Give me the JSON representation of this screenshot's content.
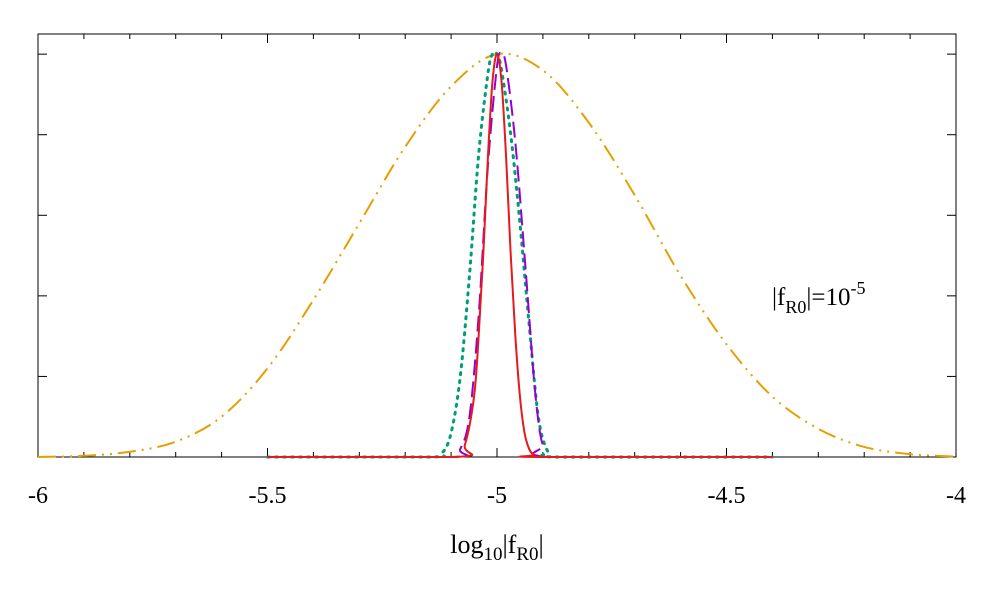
{
  "chart_data": {
    "type": "line",
    "title": "",
    "xlabel": {
      "base": "log",
      "sub": "10",
      "mid": "|f",
      "sub2": "R0",
      "end": "|"
    },
    "ylabel": "",
    "xlim": [
      -6,
      -4
    ],
    "ylim": [
      0,
      1.05
    ],
    "x_ticks": [
      -6,
      -5.5,
      -5,
      -4.5,
      -4
    ],
    "x_tick_labels": [
      "-6",
      "-5.5",
      "-5",
      "-4.5",
      "-4"
    ],
    "y_ticks": [
      0.2,
      0.4,
      0.6,
      0.8,
      1.0
    ],
    "y_tick_labels_shown": false,
    "grid": false,
    "annotation": {
      "pre": "|f",
      "sub": "R0",
      "mid": "|=10",
      "sup": "-5"
    },
    "series": [
      {
        "color": "#e69f00",
        "dash": "dash-dot-dot",
        "x_range": [
          -6,
          -4
        ],
        "x": [
          -6.0,
          -5.9,
          -5.8,
          -5.7,
          -5.6,
          -5.5,
          -5.4,
          -5.3,
          -5.2,
          -5.1,
          -5.0,
          -4.9,
          -4.8,
          -4.7,
          -4.6,
          -4.5,
          -4.4,
          -4.3,
          -4.2,
          -4.1,
          -4.0
        ],
        "y": [
          0.0,
          0.003,
          0.013,
          0.038,
          0.1,
          0.22,
          0.39,
          0.58,
          0.77,
          0.92,
          1.0,
          0.96,
          0.83,
          0.65,
          0.45,
          0.28,
          0.15,
          0.07,
          0.025,
          0.007,
          0.001
        ]
      },
      {
        "color": "#009e73",
        "dash": "dotted",
        "x_range": [
          -5.5,
          -4.4
        ],
        "x": [
          -5.5,
          -5.15,
          -5.12,
          -5.1,
          -5.08,
          -5.06,
          -5.04,
          -5.02,
          -5.01,
          -5.0,
          -4.99,
          -4.97,
          -4.95,
          -4.93,
          -4.91,
          -4.89,
          -4.87,
          -4.4
        ],
        "y": [
          0.0,
          0.0,
          0.01,
          0.06,
          0.2,
          0.45,
          0.75,
          0.95,
          1.0,
          1.0,
          0.96,
          0.8,
          0.58,
          0.33,
          0.1,
          0.015,
          0.0,
          0.0
        ]
      },
      {
        "color": "#9400d3",
        "dash": "long-dash",
        "x_range": [
          -5.5,
          -4.4
        ],
        "x": [
          -5.5,
          -5.1,
          -5.08,
          -5.06,
          -5.04,
          -5.02,
          -5.0,
          -4.99,
          -4.98,
          -4.96,
          -4.94,
          -4.93,
          -4.92,
          -4.91,
          -4.9,
          -4.88,
          -4.4
        ],
        "y": [
          0.0,
          0.0,
          0.02,
          0.1,
          0.35,
          0.72,
          0.97,
          1.0,
          0.97,
          0.78,
          0.5,
          0.35,
          0.2,
          0.09,
          0.03,
          0.0,
          0.0
        ]
      },
      {
        "color": "#e41a1c",
        "dash": "solid",
        "x_range": [
          -5.5,
          -4.4
        ],
        "x": [
          -5.5,
          -5.09,
          -5.07,
          -5.05,
          -5.04,
          -5.03,
          -5.02,
          -5.01,
          -5.0,
          -4.99,
          -4.98,
          -4.97,
          -4.96,
          -4.95,
          -4.94,
          -4.93,
          -4.92,
          -4.91,
          -4.4
        ],
        "y": [
          0.0,
          0.0,
          0.03,
          0.15,
          0.3,
          0.5,
          0.74,
          0.93,
          1.0,
          0.93,
          0.74,
          0.5,
          0.3,
          0.15,
          0.06,
          0.02,
          0.005,
          0.0,
          0.0
        ]
      }
    ]
  }
}
